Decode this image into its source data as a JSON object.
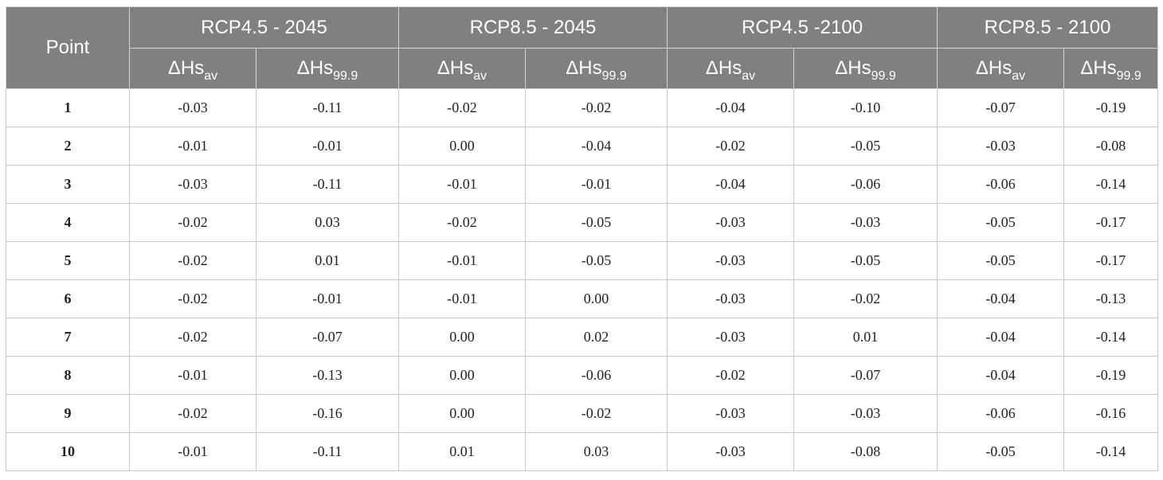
{
  "table": {
    "corner_label": "Point",
    "scenarios": [
      "RCP4.5 - 2045",
      "RCP8.5 - 2045",
      "RCP4.5 -2100",
      "RCP8.5 - 2100"
    ],
    "sub_headers": [
      {
        "base": "ΔHs",
        "sub": "av"
      },
      {
        "base": "ΔHs",
        "sub": "99.9"
      }
    ],
    "rows": [
      {
        "point": "1",
        "values": [
          "-0.03",
          "-0.11",
          "-0.02",
          "-0.02",
          "-0.04",
          "-0.10",
          "-0.07",
          "-0.19"
        ]
      },
      {
        "point": "2",
        "values": [
          "-0.01",
          "-0.01",
          "0.00",
          "-0.04",
          "-0.02",
          "-0.05",
          "-0.03",
          "-0.08"
        ]
      },
      {
        "point": "3",
        "values": [
          "-0.03",
          "-0.11",
          "-0.01",
          "-0.01",
          "-0.04",
          "-0.06",
          "-0.06",
          "-0.14"
        ]
      },
      {
        "point": "4",
        "values": [
          "-0.02",
          "0.03",
          "-0.02",
          "-0.05",
          "-0.03",
          "-0.03",
          "-0.05",
          "-0.17"
        ]
      },
      {
        "point": "5",
        "values": [
          "-0.02",
          "0.01",
          "-0.01",
          "-0.05",
          "-0.03",
          "-0.05",
          "-0.05",
          "-0.17"
        ]
      },
      {
        "point": "6",
        "values": [
          "-0.02",
          "-0.01",
          "-0.01",
          "0.00",
          "-0.03",
          "-0.02",
          "-0.04",
          "-0.13"
        ]
      },
      {
        "point": "7",
        "values": [
          "-0.02",
          "-0.07",
          "0.00",
          "0.02",
          "-0.03",
          "0.01",
          "-0.04",
          "-0.14"
        ]
      },
      {
        "point": "8",
        "values": [
          "-0.01",
          "-0.13",
          "0.00",
          "-0.06",
          "-0.02",
          "-0.07",
          "-0.04",
          "-0.19"
        ]
      },
      {
        "point": "9",
        "values": [
          "-0.02",
          "-0.16",
          "0.00",
          "-0.02",
          "-0.03",
          "-0.03",
          "-0.06",
          "-0.16"
        ]
      },
      {
        "point": "10",
        "values": [
          "-0.01",
          "-0.11",
          "0.01",
          "0.03",
          "-0.03",
          "-0.08",
          "-0.05",
          "-0.14"
        ]
      }
    ]
  }
}
